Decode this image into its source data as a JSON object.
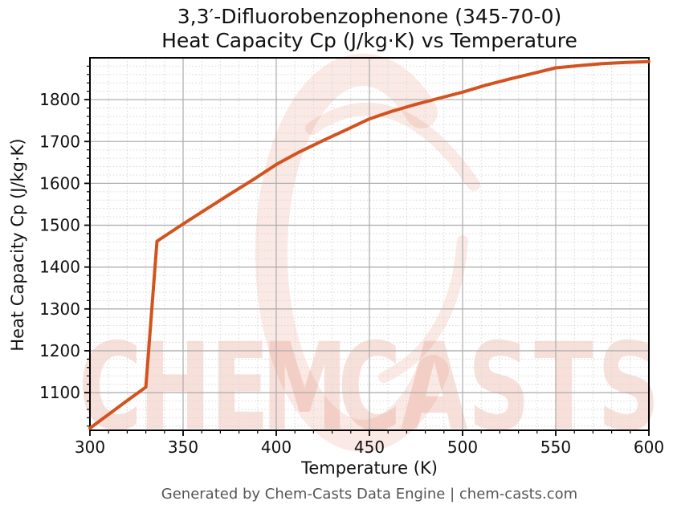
{
  "footer": "Generated by Chem-Casts Data Engine | chem-casts.com",
  "watermark": {
    "text": "CHEMCASTS",
    "text_color": "rgba(216,84,48,0.18)",
    "logo_color": "rgba(216,84,48,0.13)"
  },
  "colors": {
    "line": "#d2531f",
    "major_grid": "#b0b0b0",
    "minor_grid": "#d6d6d6",
    "axis": "#000000",
    "tick_label": "#111111",
    "footer_text": "#555555"
  },
  "chart_data": {
    "type": "line",
    "title_line1": "3,3′-Difluorobenzophenone (345-70-0)",
    "title_line2": "Heat Capacity Cp (J/kg·K) vs Temperature",
    "xlabel": "Temperature (K)",
    "ylabel": "Heat Capacity Cp (J/kg·K)",
    "xlim": [
      300,
      600
    ],
    "ylim": [
      1010,
      1900
    ],
    "xticks": [
      300,
      350,
      400,
      450,
      500,
      550,
      600
    ],
    "yticks": [
      1100,
      1200,
      1300,
      1400,
      1500,
      1600,
      1700,
      1800
    ],
    "minor_x_step": 10,
    "minor_y_step": 20,
    "grid": "major-solid minor-dotted",
    "legend": "none",
    "series": [
      {
        "name": "Heat Capacity Cp",
        "x": [
          300,
          310,
          320,
          330,
          336,
          350,
          362,
          375,
          388,
          400,
          412,
          425,
          438,
          450,
          462,
          475,
          488,
          500,
          512,
          525,
          538,
          550,
          562,
          575,
          588,
          600
        ],
        "y": [
          1015,
          1048,
          1081,
          1113,
          1462,
          1503,
          1537,
          1574,
          1610,
          1645,
          1674,
          1702,
          1729,
          1754,
          1772,
          1789,
          1804,
          1818,
          1834,
          1849,
          1863,
          1876,
          1881,
          1886,
          1889,
          1891
        ]
      }
    ],
    "annotations": {
      "phase_transition": "sharp Cp jump between T=330 K (~1113 J/kg·K) and T=336 K (~1462 J/kg·K)"
    }
  }
}
